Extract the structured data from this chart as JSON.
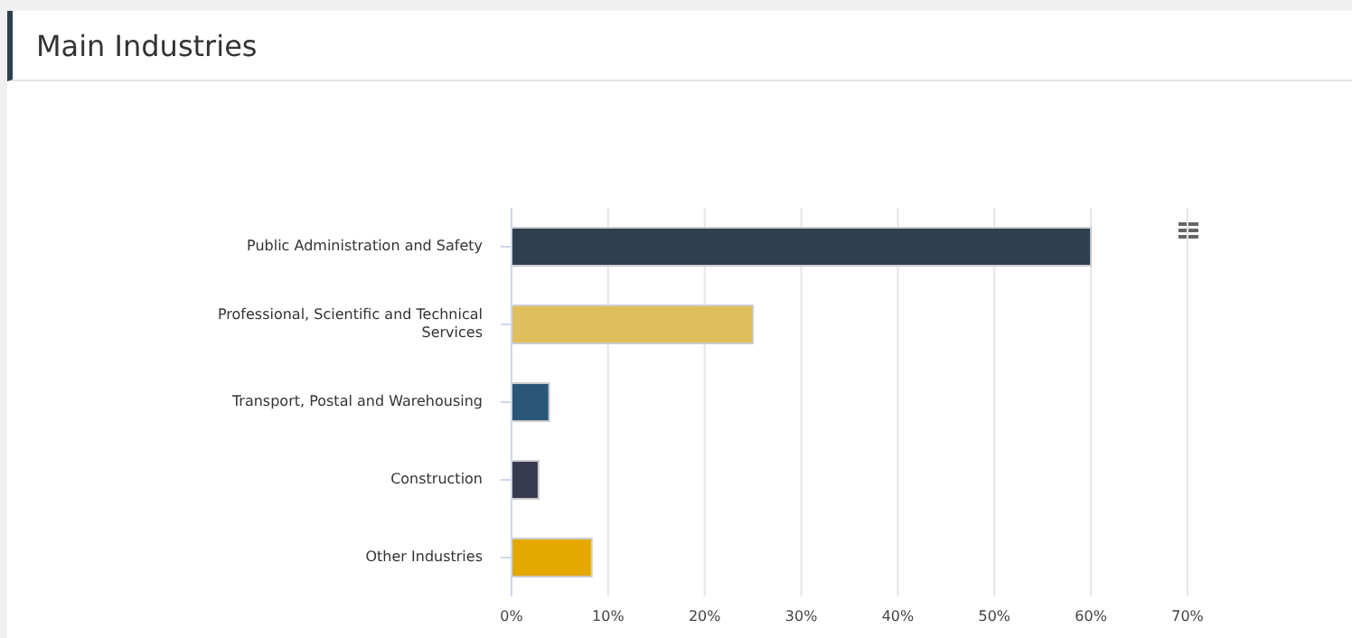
{
  "chart_data": {
    "type": "bar",
    "orientation": "horizontal",
    "title": "Main Industries",
    "categories": [
      "Public Administration and Safety",
      "Professional, Scientific and Technical Services",
      "Transport, Postal and Warehousing",
      "Construction",
      "Other Industries"
    ],
    "values": [
      60,
      25,
      3.9,
      2.8,
      8.3
    ],
    "colors": [
      "#2e3f4f",
      "#dfbf5b",
      "#2a5677",
      "#383a4f",
      "#e5a800"
    ],
    "xlim": [
      0,
      70
    ],
    "xticks": [
      {
        "value": 0,
        "label": "0%"
      },
      {
        "value": 10,
        "label": "10%"
      },
      {
        "value": 20,
        "label": "20%"
      },
      {
        "value": 30,
        "label": "30%"
      },
      {
        "value": 40,
        "label": "40%"
      },
      {
        "value": 50,
        "label": "50%"
      },
      {
        "value": 60,
        "label": "60%"
      },
      {
        "value": 70,
        "label": "70%"
      }
    ],
    "grid": "x"
  }
}
